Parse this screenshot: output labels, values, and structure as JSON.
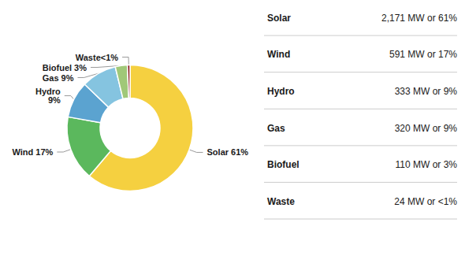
{
  "chart_data": {
    "type": "donut",
    "categories": [
      "Solar",
      "Wind",
      "Hydro",
      "Gas",
      "Biofuel",
      "Waste"
    ],
    "values": [
      2171,
      591,
      333,
      320,
      110,
      24
    ],
    "value_labels": [
      "2,171 MW or 61%",
      "591 MW or 17%",
      "333 MW or 9%",
      "320 MW or 9%",
      "110 MW or 3%",
      "24 MW or <1%"
    ],
    "annotations": [
      "Solar 61%",
      "Wind 17%",
      "Hydro\n9%",
      "Gas 9%",
      "Biofuel 3%",
      "Waste<1%"
    ],
    "colors": [
      "#F5D040",
      "#5BB85D",
      "#5BA3D0",
      "#85C4E0",
      "#A0C878",
      "#8B1A1A"
    ]
  }
}
